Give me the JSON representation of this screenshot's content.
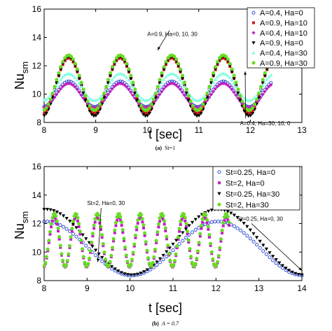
{
  "chart_data": [
    {
      "type": "scatter",
      "panel_label": "(a)",
      "caption": "St=1",
      "xlabel": "t [sec]",
      "ylabel_main": "Nu",
      "ylabel_sub": "sm",
      "xlim": [
        8,
        13
      ],
      "ylim": [
        8,
        16
      ],
      "xticks": [
        8,
        9,
        10,
        11,
        12,
        13
      ],
      "yticks": [
        8,
        10,
        12,
        14,
        16
      ],
      "legend_position": "top-right",
      "series": [
        {
          "name": "A=0.4, Ha=0",
          "marker": "circle",
          "color": "#1f3fd0",
          "mean": 10.0,
          "amp": 0.9,
          "freq": 1.0
        },
        {
          "name": "A=0.9, Ha=10",
          "marker": "square",
          "color": "#d01818",
          "mean": 10.6,
          "amp": 1.95,
          "freq": 1.0
        },
        {
          "name": "A=0.4, Ha=10",
          "marker": "diamond",
          "color": "#c020c0",
          "mean": 9.9,
          "amp": 0.85,
          "freq": 1.0
        },
        {
          "name": "A=0.9, Ha=0",
          "marker": "triangle-down",
          "color": "#000000",
          "mean": 10.55,
          "amp": 2.1,
          "freq": 1.0
        },
        {
          "name": "A=0.4, Ha=30",
          "marker": "triangle",
          "color": "#7fffe0",
          "mean": 10.5,
          "amp": 0.95,
          "freq": 1.0
        },
        {
          "name": "A=0.9, Ha=30",
          "marker": "circle-filled",
          "color": "#66dd22",
          "mean": 10.8,
          "amp": 1.95,
          "freq": 1.0
        }
      ],
      "x_range": [
        8,
        12.4
      ],
      "annotations": [
        {
          "text": "A=0.9, Ha=0, 10, 30",
          "x": 10.0,
          "y": 14.1,
          "arrow_to": [
            10.2,
            13.1
          ]
        },
        {
          "text": "A=0.4, Ha=30, 10, 0",
          "x": 11.8,
          "y": 7.8,
          "arrow_to": [
            11.9,
            11.6
          ]
        }
      ]
    },
    {
      "type": "scatter",
      "panel_label": "(b)",
      "caption": "A = 0.7",
      "xlabel": "t [sec]",
      "ylabel_main": "Nu",
      "ylabel_sub": "sm",
      "xlim": [
        8,
        14
      ],
      "ylim": [
        8,
        16
      ],
      "xticks": [
        8,
        9,
        10,
        11,
        12,
        13,
        14
      ],
      "yticks": [
        8,
        10,
        12,
        14,
        16
      ],
      "legend_position": "top-right",
      "series": [
        {
          "name": "St=0.25, Ha=0",
          "marker": "circle",
          "color": "#1f3fd0",
          "mean": 10.25,
          "amp": 1.9,
          "freq": 0.25,
          "x_range": [
            8,
            14
          ]
        },
        {
          "name": "St=2, Ha=0",
          "marker": "square",
          "color": "#c020c0",
          "mean": 10.7,
          "amp": 1.75,
          "freq": 2.0,
          "x_range": [
            8,
            12.3
          ]
        },
        {
          "name": "St=0.25, Ha=30",
          "marker": "triangle-down",
          "color": "#000000",
          "mean": 10.7,
          "amp": 2.3,
          "freq": 0.25,
          "x_range": [
            8,
            14
          ]
        },
        {
          "name": "St=2, Ha=30",
          "marker": "circle-filled",
          "color": "#66dd22",
          "mean": 10.85,
          "amp": 1.85,
          "freq": 2.0,
          "x_range": [
            8,
            12.3
          ]
        }
      ],
      "annotations": [
        {
          "text": "St=2, Ha=0, 30",
          "x": 9.0,
          "y": 13.3,
          "arrow_to": [
            9.25,
            9.3
          ]
        },
        {
          "text": "St=0.25, Ha=0, 30",
          "x": 12.5,
          "y": 12.2,
          "arrow_to": [
            14.0,
            8.7
          ]
        }
      ]
    }
  ]
}
